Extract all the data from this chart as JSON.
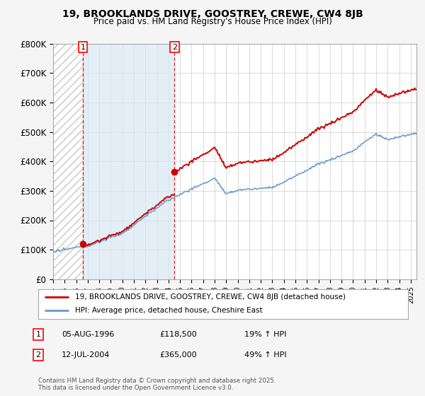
{
  "title1": "19, BROOKLANDS DRIVE, GOOSTREY, CREWE, CW4 8JB",
  "title2": "Price paid vs. HM Land Registry's House Price Index (HPI)",
  "legend_label1": "19, BROOKLANDS DRIVE, GOOSTREY, CREWE, CW4 8JB (detached house)",
  "legend_label2": "HPI: Average price, detached house, Cheshire East",
  "purchase1_label": "1",
  "purchase1_date": "05-AUG-1996",
  "purchase1_price": "£118,500",
  "purchase1_hpi": "19% ↑ HPI",
  "purchase1_year": 1996.58,
  "purchase1_value": 118500,
  "purchase2_label": "2",
  "purchase2_date": "12-JUL-2004",
  "purchase2_price": "£365,000",
  "purchase2_hpi": "49% ↑ HPI",
  "purchase2_year": 2004.53,
  "purchase2_value": 365000,
  "xmin": 1994,
  "xmax": 2025.5,
  "ymin": 0,
  "ymax": 800000,
  "yticks": [
    0,
    100000,
    200000,
    300000,
    400000,
    500000,
    600000,
    700000,
    800000
  ],
  "ytick_labels": [
    "£0",
    "£100K",
    "£200K",
    "£300K",
    "£400K",
    "£500K",
    "£600K",
    "£700K",
    "£800K"
  ],
  "line_color_red": "#cc0000",
  "line_color_blue": "#6699cc",
  "footer": "Contains HM Land Registry data © Crown copyright and database right 2025.\nThis data is licensed under the Open Government Licence v3.0.",
  "background_color": "#f5f5f5",
  "plot_bg_color": "#ffffff",
  "hatch_region_color": "#cccccc",
  "blue_region_color": "#d8e8f5"
}
